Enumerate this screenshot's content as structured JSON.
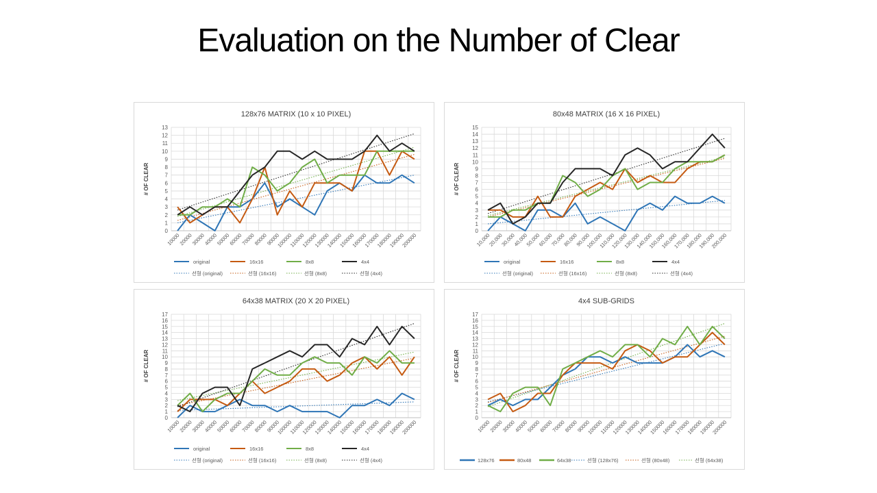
{
  "slide": {
    "title": "Evaluation on the Number of Clear"
  },
  "colors": {
    "orange": "#c55a11",
    "blue": "#2e75b6",
    "green": "#70ad47",
    "black": "#262626"
  },
  "chart_data": [
    {
      "type": "line",
      "title": "128x76 MATRIX (10 x 10 PIXEL)",
      "ylabel": "# OF CLEAR",
      "xlabel": "",
      "ylim": [
        0,
        13
      ],
      "yticks": [
        0,
        1,
        2,
        3,
        4,
        5,
        6,
        7,
        8,
        9,
        10,
        11,
        12,
        13
      ],
      "categories": [
        "10000",
        "20000",
        "30000",
        "40000",
        "50000",
        "60000",
        "70000",
        "80000",
        "90000",
        "100000",
        "110000",
        "120000",
        "130000",
        "140000",
        "150000",
        "160000",
        "170000",
        "180000",
        "190000",
        "200000"
      ],
      "series": [
        {
          "name": "original",
          "color": "#2e75b6",
          "values": [
            0,
            2,
            1,
            0,
            3,
            3,
            4,
            6,
            3,
            4,
            3,
            2,
            5,
            6,
            5,
            7,
            6,
            6,
            7,
            6
          ]
        },
        {
          "name": "16x16",
          "color": "#c55a11",
          "values": [
            3,
            1,
            2,
            3,
            3,
            1,
            4,
            8,
            2,
            5,
            3,
            6,
            6,
            6,
            5,
            10,
            10,
            7,
            10,
            9
          ]
        },
        {
          "name": "8x8",
          "color": "#70ad47",
          "values": [
            2,
            2,
            3,
            3,
            4,
            3,
            8,
            7,
            5,
            6,
            8,
            9,
            6,
            7,
            7,
            7,
            10,
            10,
            10,
            10
          ]
        },
        {
          "name": "4x4",
          "color": "#262626",
          "values": [
            2,
            3,
            2,
            3,
            3,
            5,
            7,
            8,
            10,
            10,
            9,
            10,
            9,
            9,
            9,
            10,
            12,
            10,
            11,
            10
          ]
        }
      ],
      "trendlines": [
        {
          "name": "선형 (original)",
          "color": "#2e75b6",
          "start": 1.0,
          "end": 7.0
        },
        {
          "name": "선형 (16x16)",
          "color": "#c55a11",
          "start": 1.3,
          "end": 9.6
        },
        {
          "name": "선형 (8x8)",
          "color": "#70ad47",
          "start": 1.8,
          "end": 10.5
        },
        {
          "name": "선형 (4x4)",
          "color": "#262626",
          "start": 2.6,
          "end": 12.2
        }
      ]
    },
    {
      "type": "line",
      "title": "80x48 MATRIX (16 X 16 PIXEL)",
      "ylabel": "# OF CLEAR",
      "xlabel": "",
      "ylim": [
        0,
        15
      ],
      "yticks": [
        0,
        1,
        2,
        3,
        4,
        5,
        6,
        7,
        8,
        9,
        10,
        11,
        12,
        13,
        14,
        15
      ],
      "categories": [
        "10,000",
        "20,000",
        "30,000",
        "40,000",
        "50,000",
        "60,000",
        "70,000",
        "80,000",
        "90,000",
        "100,000",
        "110,000",
        "120,000",
        "130,000",
        "140,000",
        "150,000",
        "160,000",
        "170,000",
        "180,000",
        "190,000",
        "200,000"
      ],
      "series": [
        {
          "name": "original",
          "color": "#2e75b6",
          "values": [
            0,
            2,
            1,
            0,
            3,
            3,
            2,
            4,
            1,
            2,
            1,
            0,
            3,
            4,
            3,
            5,
            4,
            4,
            5,
            4
          ]
        },
        {
          "name": "16x16",
          "color": "#c55a11",
          "values": [
            3,
            3,
            2,
            2,
            5,
            2,
            2,
            5,
            6,
            7,
            6,
            9,
            7,
            8,
            7,
            7,
            9,
            10,
            10,
            11
          ]
        },
        {
          "name": "8x8",
          "color": "#70ad47",
          "values": [
            2,
            2,
            3,
            3,
            4,
            4,
            8,
            7,
            5,
            6,
            8,
            9,
            6,
            7,
            7,
            9,
            10,
            10,
            10,
            11
          ]
        },
        {
          "name": "4x4",
          "color": "#262626",
          "values": [
            3,
            4,
            1,
            2,
            4,
            4,
            7,
            9,
            9,
            9,
            8,
            11,
            12,
            11,
            9,
            10,
            10,
            12,
            14,
            12
          ]
        }
      ],
      "trendlines": [
        {
          "name": "선형 (original)",
          "color": "#2e75b6",
          "start": 1.0,
          "end": 4.4
        },
        {
          "name": "선형 (16x16)",
          "color": "#c55a11",
          "start": 2.0,
          "end": 10.5
        },
        {
          "name": "선형 (8x8)",
          "color": "#70ad47",
          "start": 2.2,
          "end": 10.7
        },
        {
          "name": "선형 (4x4)",
          "color": "#262626",
          "start": 2.5,
          "end": 13.4
        }
      ]
    },
    {
      "type": "line",
      "title": "64x38 MATRIX (20 X 20 PIXEL)",
      "ylabel": "# OF CLEAR",
      "xlabel": "",
      "ylim": [
        0,
        17
      ],
      "yticks": [
        0,
        1,
        2,
        3,
        4,
        5,
        6,
        7,
        8,
        9,
        10,
        11,
        12,
        13,
        14,
        15,
        16,
        17
      ],
      "categories": [
        "10000",
        "20000",
        "30000",
        "40000",
        "50000",
        "60000",
        "70000",
        "80000",
        "90000",
        "100000",
        "110000",
        "120000",
        "130000",
        "140000",
        "150000",
        "160000",
        "170000",
        "180000",
        "190000",
        "200000"
      ],
      "series": [
        {
          "name": "original",
          "color": "#2e75b6",
          "values": [
            0,
            2,
            1,
            1,
            2,
            3,
            2,
            2,
            1,
            2,
            1,
            1,
            1,
            0,
            2,
            2,
            3,
            2,
            4,
            3
          ]
        },
        {
          "name": "16x16",
          "color": "#c55a11",
          "values": [
            1,
            3,
            3,
            3,
            2,
            4,
            6,
            4,
            5,
            6,
            8,
            8,
            6,
            7,
            9,
            10,
            8,
            10,
            7,
            10
          ]
        },
        {
          "name": "8x8",
          "color": "#70ad47",
          "values": [
            2,
            4,
            1,
            3,
            4,
            4,
            6,
            8,
            7,
            7,
            9,
            10,
            9,
            9,
            7,
            10,
            9,
            11,
            9,
            9
          ]
        },
        {
          "name": "4x4",
          "color": "#262626",
          "values": [
            2,
            1,
            4,
            5,
            5,
            2,
            8,
            9,
            10,
            11,
            10,
            12,
            12,
            10,
            13,
            12,
            15,
            12,
            15,
            13
          ]
        }
      ],
      "trendlines": [
        {
          "name": "선형 (original)",
          "color": "#2e75b6",
          "start": 1.2,
          "end": 2.6
        },
        {
          "name": "선형 (16x16)",
          "color": "#c55a11",
          "start": 2.0,
          "end": 9.8
        },
        {
          "name": "선형 (8x8)",
          "color": "#70ad47",
          "start": 2.8,
          "end": 10.8
        },
        {
          "name": "선형 (4x4)",
          "color": "#262626",
          "start": 1.8,
          "end": 15.5
        }
      ]
    },
    {
      "type": "line",
      "title": "4x4 SUB-GRIDS",
      "ylabel": "# OF CLEAR",
      "xlabel": "",
      "ylim": [
        0,
        17
      ],
      "yticks": [
        0,
        1,
        2,
        3,
        4,
        5,
        6,
        7,
        8,
        9,
        10,
        11,
        12,
        13,
        14,
        15,
        16,
        17
      ],
      "categories": [
        "10000",
        "20000",
        "30000",
        "40000",
        "50000",
        "60000",
        "70000",
        "80000",
        "90000",
        "100000",
        "110000",
        "120000",
        "130000",
        "140000",
        "150000",
        "160000",
        "170000",
        "180000",
        "190000",
        "200000"
      ],
      "series": [
        {
          "name": "128x76",
          "color": "#2e75b6",
          "values": [
            2,
            3,
            2,
            3,
            3,
            5,
            7,
            8,
            10,
            10,
            9,
            10,
            9,
            9,
            9,
            10,
            12,
            10,
            11,
            10
          ]
        },
        {
          "name": "80x48",
          "color": "#c55a11",
          "values": [
            3,
            4,
            1,
            2,
            4,
            4,
            7,
            9,
            9,
            9,
            8,
            11,
            12,
            11,
            9,
            10,
            10,
            12,
            14,
            12
          ]
        },
        {
          "name": "64x38",
          "color": "#70ad47",
          "values": [
            2,
            1,
            4,
            5,
            5,
            2,
            8,
            9,
            10,
            11,
            10,
            12,
            12,
            10,
            13,
            12,
            15,
            12,
            15,
            13
          ]
        }
      ],
      "trendlines": [
        {
          "name": "선형 (128x76)",
          "color": "#2e75b6",
          "start": 2.6,
          "end": 12.2
        },
        {
          "name": "선형 (80x48)",
          "color": "#c55a11",
          "start": 2.5,
          "end": 13.4
        },
        {
          "name": "선형 (64x38)",
          "color": "#70ad47",
          "start": 1.8,
          "end": 15.5
        }
      ]
    }
  ]
}
